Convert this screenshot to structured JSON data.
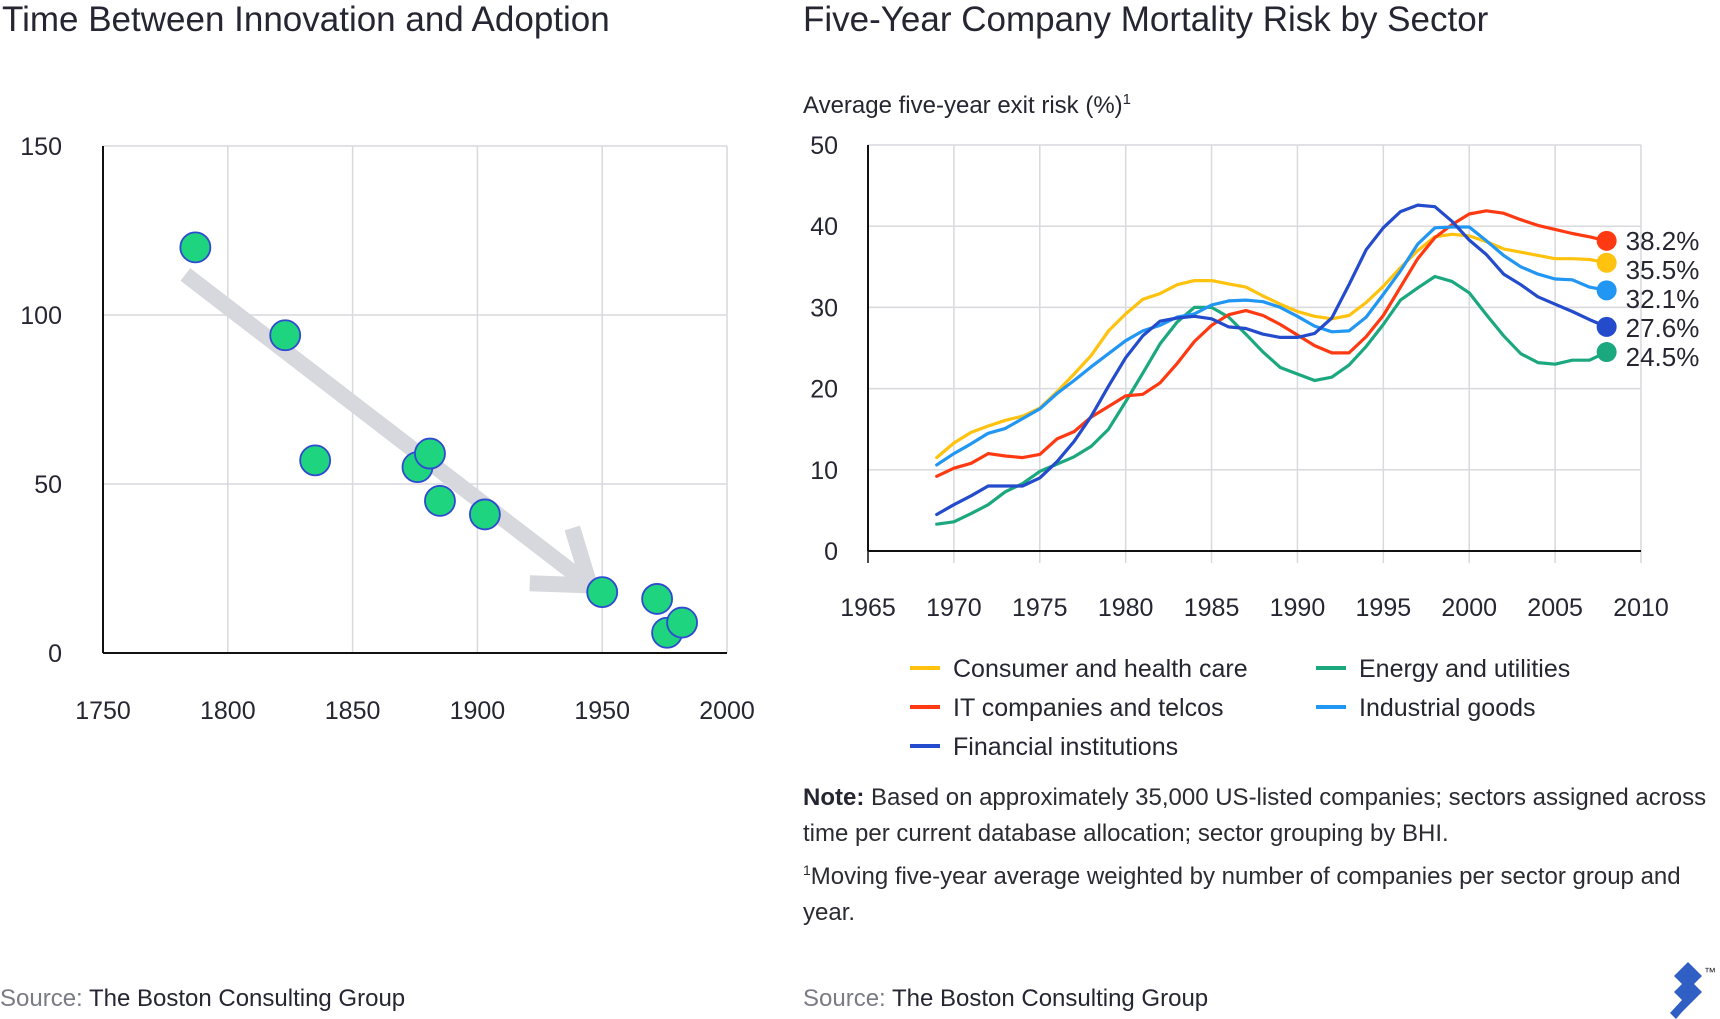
{
  "left_chart": {
    "title": "Time Between Innovation and Adoption",
    "source_prefix": "Source:",
    "source_name": "The Boston Consulting Group"
  },
  "right_chart": {
    "title": "Five-Year Company Mortality Risk by Sector",
    "ylabel": "Average five-year exit risk (%)",
    "ylabel_footnote": "1",
    "note_label": "Note:",
    "note_text": "Based on approximately 35,000 US-listed companies; sectors assigned across time per current database allocation; sector grouping by BHI.",
    "footnote_marker": "1",
    "footnote_text": "Moving five-year average weighted by number of companies per sector group and year.",
    "source_prefix": "Source:",
    "source_name": "The Boston Consulting Group"
  },
  "logo_icon": "toptal-logo-icon",
  "logo_mark": "™",
  "chart_data": [
    {
      "type": "scatter",
      "xlim": [
        1750,
        2000
      ],
      "ylim": [
        0,
        150
      ],
      "xticks": [
        "1750",
        "1800",
        "1850",
        "1900",
        "1950",
        "2000"
      ],
      "yticks": [
        "0",
        "50",
        "100",
        "150"
      ],
      "grid": true,
      "point_color": "#1ed47e",
      "point_edge_color": "#2f49d1",
      "trend_arrow_color": "#d7d8dd",
      "trend_arrow": {
        "from": [
          1783,
          112
        ],
        "to": [
          1945,
          20
        ]
      },
      "points": [
        {
          "x": 1787,
          "y": 120
        },
        {
          "x": 1823,
          "y": 94
        },
        {
          "x": 1835,
          "y": 57
        },
        {
          "x": 1876,
          "y": 55
        },
        {
          "x": 1881,
          "y": 59
        },
        {
          "x": 1885,
          "y": 45
        },
        {
          "x": 1903,
          "y": 41
        },
        {
          "x": 1950,
          "y": 18
        },
        {
          "x": 1972,
          "y": 16
        },
        {
          "x": 1976,
          "y": 6
        },
        {
          "x": 1982,
          "y": 9
        }
      ]
    },
    {
      "type": "line",
      "xlim": [
        1965,
        2010
      ],
      "ylim": [
        0,
        50
      ],
      "xticks": [
        "1965",
        "1970",
        "1975",
        "1980",
        "1985",
        "1990",
        "1995",
        "2000",
        "2005",
        "2010"
      ],
      "yticks": [
        "0",
        "10",
        "20",
        "30",
        "40",
        "50"
      ],
      "grid": true,
      "legend_position": "bottom",
      "x": [
        1969,
        1970,
        1971,
        1972,
        1973,
        1974,
        1975,
        1976,
        1977,
        1978,
        1979,
        1980,
        1981,
        1982,
        1983,
        1984,
        1985,
        1986,
        1987,
        1988,
        1989,
        1990,
        1991,
        1992,
        1993,
        1994,
        1995,
        1996,
        1997,
        1998,
        1999,
        2000,
        2001,
        2002,
        2003,
        2004,
        2005,
        2006,
        2007,
        2008
      ],
      "series": [
        {
          "name": "Consumer and health care",
          "color": "#ffc20e",
          "end_label": "35.5%",
          "values": [
            11.5,
            13.3,
            14.6,
            15.4,
            16.1,
            16.6,
            17.6,
            19.6,
            21.8,
            24.1,
            27.1,
            29.2,
            31.0,
            31.7,
            32.8,
            33.3,
            33.3,
            32.9,
            32.5,
            31.4,
            30.4,
            29.5,
            28.9,
            28.6,
            29.0,
            30.6,
            32.6,
            34.9,
            37.0,
            38.7,
            39.0,
            38.8,
            38.1,
            37.2,
            36.8,
            36.4,
            36.0,
            36.0,
            35.9,
            35.5
          ]
        },
        {
          "name": "Energy and utilities",
          "color": "#1ca87f",
          "end_label": "24.5%",
          "values": [
            3.3,
            3.6,
            4.6,
            5.7,
            7.3,
            8.3,
            9.8,
            10.7,
            11.6,
            12.9,
            15.0,
            18.4,
            21.9,
            25.5,
            28.2,
            30.0,
            30.0,
            28.8,
            26.7,
            24.5,
            22.6,
            21.8,
            21.0,
            21.4,
            22.9,
            25.2,
            27.9,
            30.9,
            32.4,
            33.8,
            33.2,
            31.8,
            29.1,
            26.5,
            24.3,
            23.2,
            23.0,
            23.5,
            23.5,
            24.5
          ]
        },
        {
          "name": "IT companies and telcos",
          "color": "#ff3a12",
          "end_label": "38.2%",
          "values": [
            9.2,
            10.2,
            10.8,
            12.0,
            11.7,
            11.5,
            11.9,
            13.8,
            14.7,
            16.5,
            17.8,
            19.1,
            19.3,
            20.7,
            23.1,
            25.8,
            27.8,
            29.1,
            29.6,
            29.0,
            27.9,
            26.6,
            25.3,
            24.4,
            24.4,
            26.4,
            29.0,
            32.5,
            36.0,
            38.6,
            40.2,
            41.5,
            41.9,
            41.6,
            40.8,
            40.1,
            39.6,
            39.1,
            38.7,
            38.2
          ]
        },
        {
          "name": "Industrial goods",
          "color": "#2196f3",
          "end_label": "32.1%",
          "values": [
            10.6,
            12.0,
            13.2,
            14.5,
            15.1,
            16.3,
            17.5,
            19.4,
            21.0,
            22.7,
            24.3,
            25.9,
            27.1,
            27.8,
            28.8,
            29.2,
            30.3,
            30.8,
            30.9,
            30.7,
            30.0,
            28.9,
            27.7,
            27.0,
            27.1,
            28.8,
            31.6,
            34.5,
            37.8,
            39.8,
            39.9,
            39.9,
            38.2,
            36.4,
            35.0,
            34.1,
            33.5,
            33.4,
            32.5,
            32.1
          ]
        },
        {
          "name": "Financial institutions",
          "color": "#234bcb",
          "end_label": "27.6%",
          "values": [
            4.5,
            5.7,
            6.8,
            8.0,
            8.0,
            8.0,
            9.0,
            11.0,
            13.5,
            16.6,
            20.3,
            23.8,
            26.5,
            28.3,
            28.7,
            28.9,
            28.6,
            27.6,
            27.4,
            26.7,
            26.3,
            26.3,
            26.8,
            28.7,
            32.8,
            37.1,
            39.8,
            41.8,
            42.6,
            42.4,
            40.6,
            38.3,
            36.5,
            34.1,
            32.8,
            31.3,
            30.4,
            29.5,
            28.5,
            27.6
          ]
        }
      ],
      "label_order": [
        "IT companies and telcos",
        "Consumer and health care",
        "Industrial goods",
        "Financial institutions",
        "Energy and utilities"
      ],
      "legend_order": [
        "Consumer and health care",
        "Energy and utilities",
        "IT companies and telcos",
        "Industrial goods",
        "Financial institutions"
      ]
    }
  ]
}
